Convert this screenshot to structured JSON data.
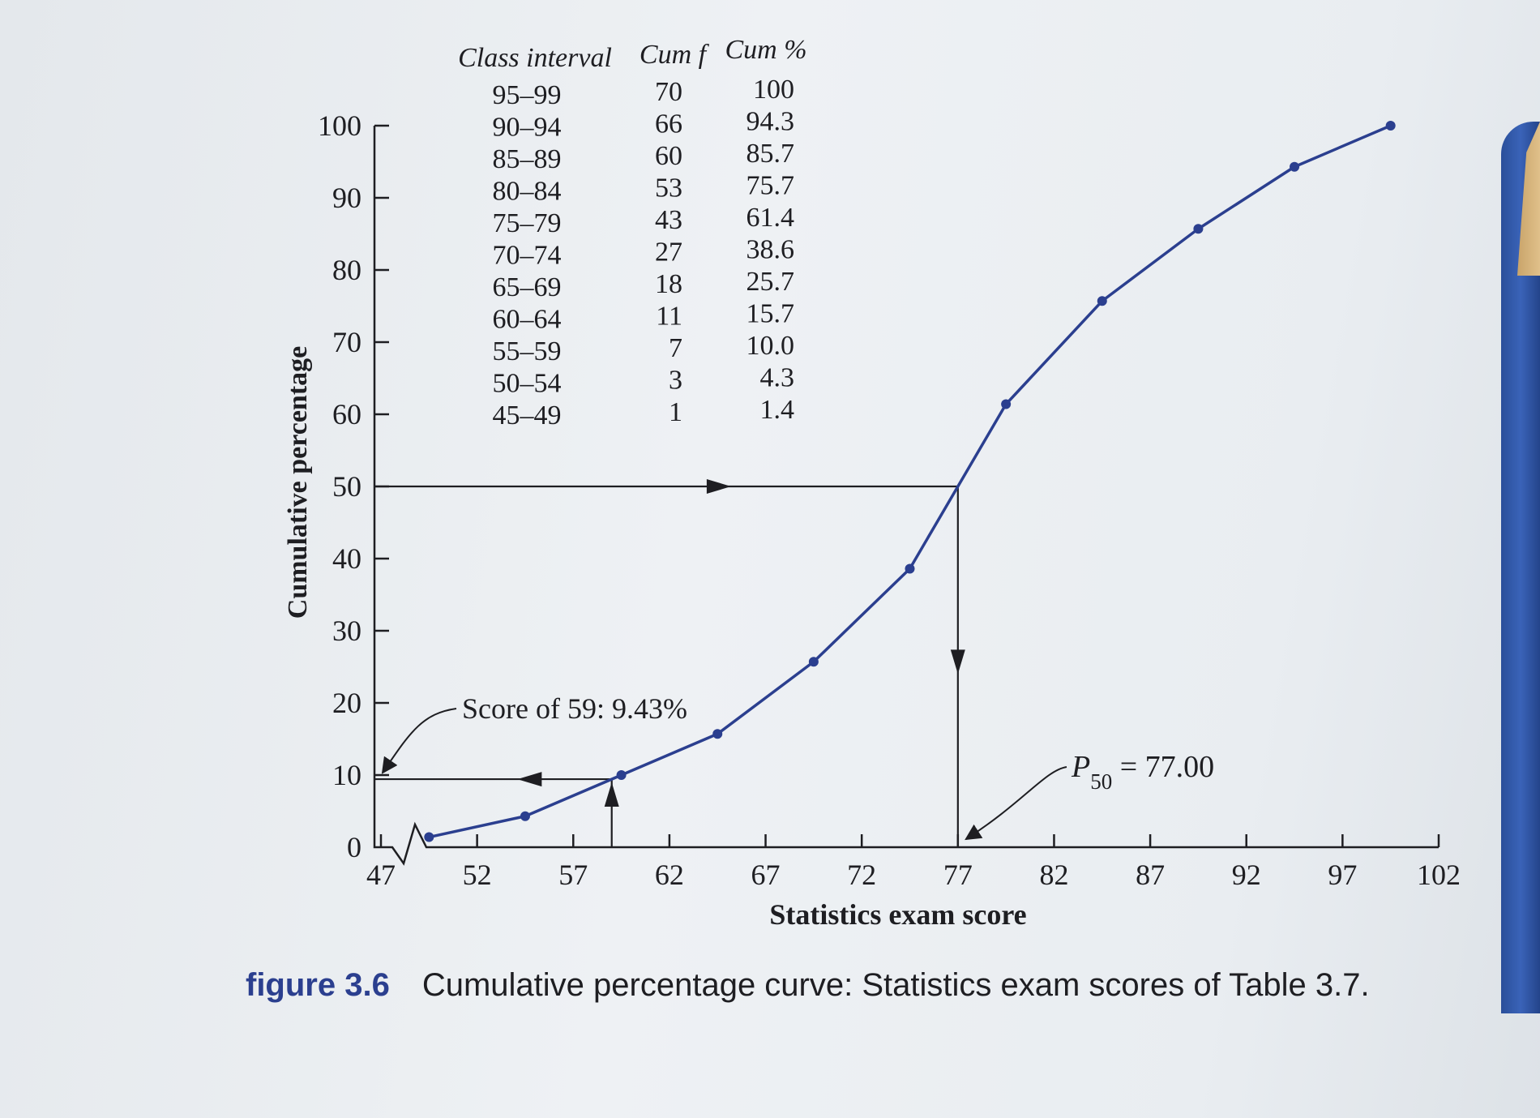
{
  "table": {
    "headers": [
      "Class interval",
      "Cum f",
      "Cum %"
    ],
    "rows": [
      [
        "95–99",
        "70",
        "100"
      ],
      [
        "90–94",
        "66",
        "94.3"
      ],
      [
        "85–89",
        "60",
        "85.7"
      ],
      [
        "80–84",
        "53",
        "75.7"
      ],
      [
        "75–79",
        "43",
        "61.4"
      ],
      [
        "70–74",
        "27",
        "38.6"
      ],
      [
        "65–69",
        "18",
        "25.7"
      ],
      [
        "60–64",
        "11",
        "15.7"
      ],
      [
        "55–59",
        "7",
        "10.0"
      ],
      [
        "50–54",
        "3",
        "4.3"
      ],
      [
        "45–49",
        "1",
        "1.4"
      ]
    ]
  },
  "annotations": {
    "score59": "Score of 59: 9.43%",
    "p50_prefix": "P",
    "p50_sub": "50",
    "p50_value": " = 77.00"
  },
  "caption": {
    "label": "figure 3.6",
    "text": "Cumulative percentage curve: Statistics exam scores of Table 3.7."
  },
  "colors": {
    "curve": "#2b3f8f",
    "axis": "#1e1e22"
  },
  "chart_data": {
    "type": "line",
    "title": "",
    "xlabel": "Statistics exam score",
    "ylabel": "Cumulative percentage",
    "xlim": [
      47,
      102
    ],
    "ylim": [
      0,
      100
    ],
    "x_ticks": [
      47,
      52,
      57,
      62,
      67,
      72,
      77,
      82,
      87,
      92,
      97,
      102
    ],
    "y_ticks": [
      0,
      10,
      20,
      30,
      40,
      50,
      60,
      70,
      80,
      90,
      100
    ],
    "series": [
      {
        "x": [
          49.5,
          54.5,
          59.5,
          64.5,
          69.5,
          74.5,
          79.5,
          84.5,
          89.5,
          94.5,
          99.5
        ],
        "y": [
          1.4,
          4.3,
          10.0,
          15.7,
          25.7,
          38.6,
          61.4,
          75.7,
          85.7,
          94.3,
          100
        ]
      }
    ],
    "grid": false,
    "legend": "none",
    "reference_lines": [
      {
        "from_y": 50,
        "to_x": 77
      },
      {
        "from_x": 59,
        "to_y": 9.43
      }
    ]
  }
}
